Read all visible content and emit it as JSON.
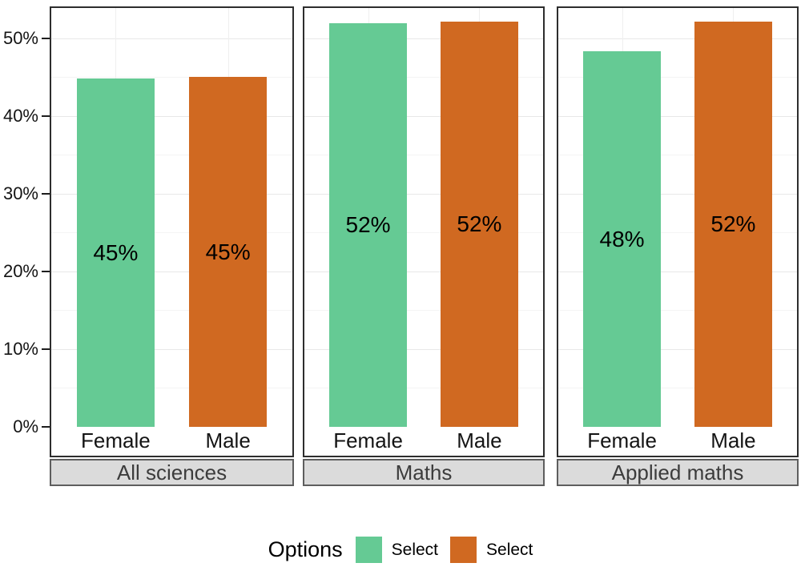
{
  "chart_data": {
    "type": "bar",
    "title": "",
    "xlabel": "",
    "ylabel": "",
    "facets": [
      {
        "label": "All sciences",
        "categories": [
          "Female",
          "Male"
        ],
        "values": [
          44.8,
          45.0
        ],
        "bar_labels": [
          "45%",
          "45%"
        ]
      },
      {
        "label": "Maths",
        "categories": [
          "Female",
          "Male"
        ],
        "values": [
          51.9,
          52.1
        ],
        "bar_labels": [
          "52%",
          "52%"
        ]
      },
      {
        "label": "Applied maths",
        "categories": [
          "Female",
          "Male"
        ],
        "values": [
          48.3,
          52.1
        ],
        "bar_labels": [
          "48%",
          "52%"
        ]
      }
    ],
    "series": [
      {
        "name": "Select",
        "color": "#65CA94"
      },
      {
        "name": "Select",
        "color": "#D06921"
      }
    ],
    "y_axis": {
      "ticks": [
        {
          "label": "0%",
          "value": 0
        },
        {
          "label": "10%",
          "value": 10
        },
        {
          "label": "20%",
          "value": 20
        },
        {
          "label": "30%",
          "value": 30
        },
        {
          "label": "40%",
          "value": 40
        },
        {
          "label": "50%",
          "value": 50
        }
      ],
      "minor_tick_values": [
        5,
        15,
        25,
        35,
        45
      ],
      "ylim": [
        0,
        54
      ],
      "unit": "%"
    },
    "legend": {
      "title": "Options",
      "position": "bottom",
      "entries": [
        {
          "label": "Select",
          "color": "#65CA94"
        },
        {
          "label": "Select",
          "color": "#D06921"
        }
      ]
    },
    "grid": true
  },
  "colors": {
    "background": "#FFFFFF",
    "bar_green": "#65CA94",
    "bar_orange": "#D06921",
    "panel_border": "#2D2D2D",
    "strip_background": "#DBDBDB",
    "strip_border": "#5E5E5E",
    "strip_text": "#3C3C3C",
    "grid_major": "#E8E8E8",
    "grid_minor": "#F4F4F4",
    "axis_text": "#141414",
    "bar_label_text": "#000000"
  }
}
